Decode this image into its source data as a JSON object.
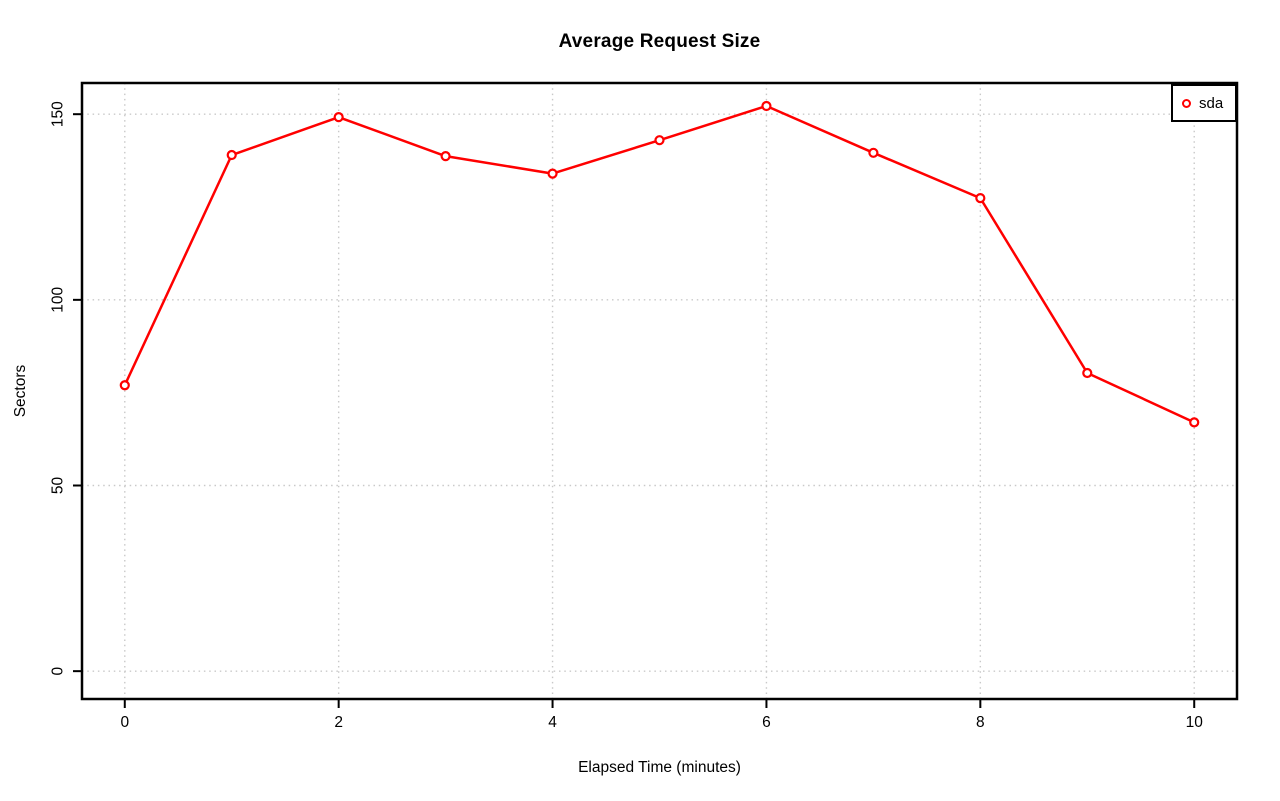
{
  "window": {
    "background": "#FFFFFF"
  },
  "chart_data": {
    "type": "line",
    "title": "Average Request Size",
    "xlabel": "Elapsed Time (minutes)",
    "ylabel": "Sectors",
    "x": [
      0,
      1,
      2,
      3,
      4,
      5,
      6,
      7,
      8,
      9,
      10
    ],
    "series": [
      {
        "name": "sda",
        "color": "#FF0000",
        "values": [
          77,
          139,
          149.2,
          138.7,
          134,
          143,
          152.2,
          139.6,
          127.4,
          80.3,
          67
        ]
      }
    ],
    "x_ticks": [
      0,
      2,
      4,
      6,
      8,
      10
    ],
    "y_ticks": [
      0,
      50,
      100,
      150
    ],
    "xlim": [
      -0.4,
      10.4
    ],
    "ylim": [
      -7.5,
      158.4
    ],
    "grid": true,
    "grid_style": "dotted",
    "legend_position": "top-right",
    "marker": "open-circle"
  },
  "legend": {
    "items": [
      {
        "label": "sda",
        "color": "#FF0000",
        "marker": "open-circle"
      }
    ]
  },
  "colors": {
    "series_red": "#FF0000",
    "grid": "#C9C9C9",
    "axis": "#000000",
    "text": "#000000",
    "background": "#FFFFFF"
  }
}
